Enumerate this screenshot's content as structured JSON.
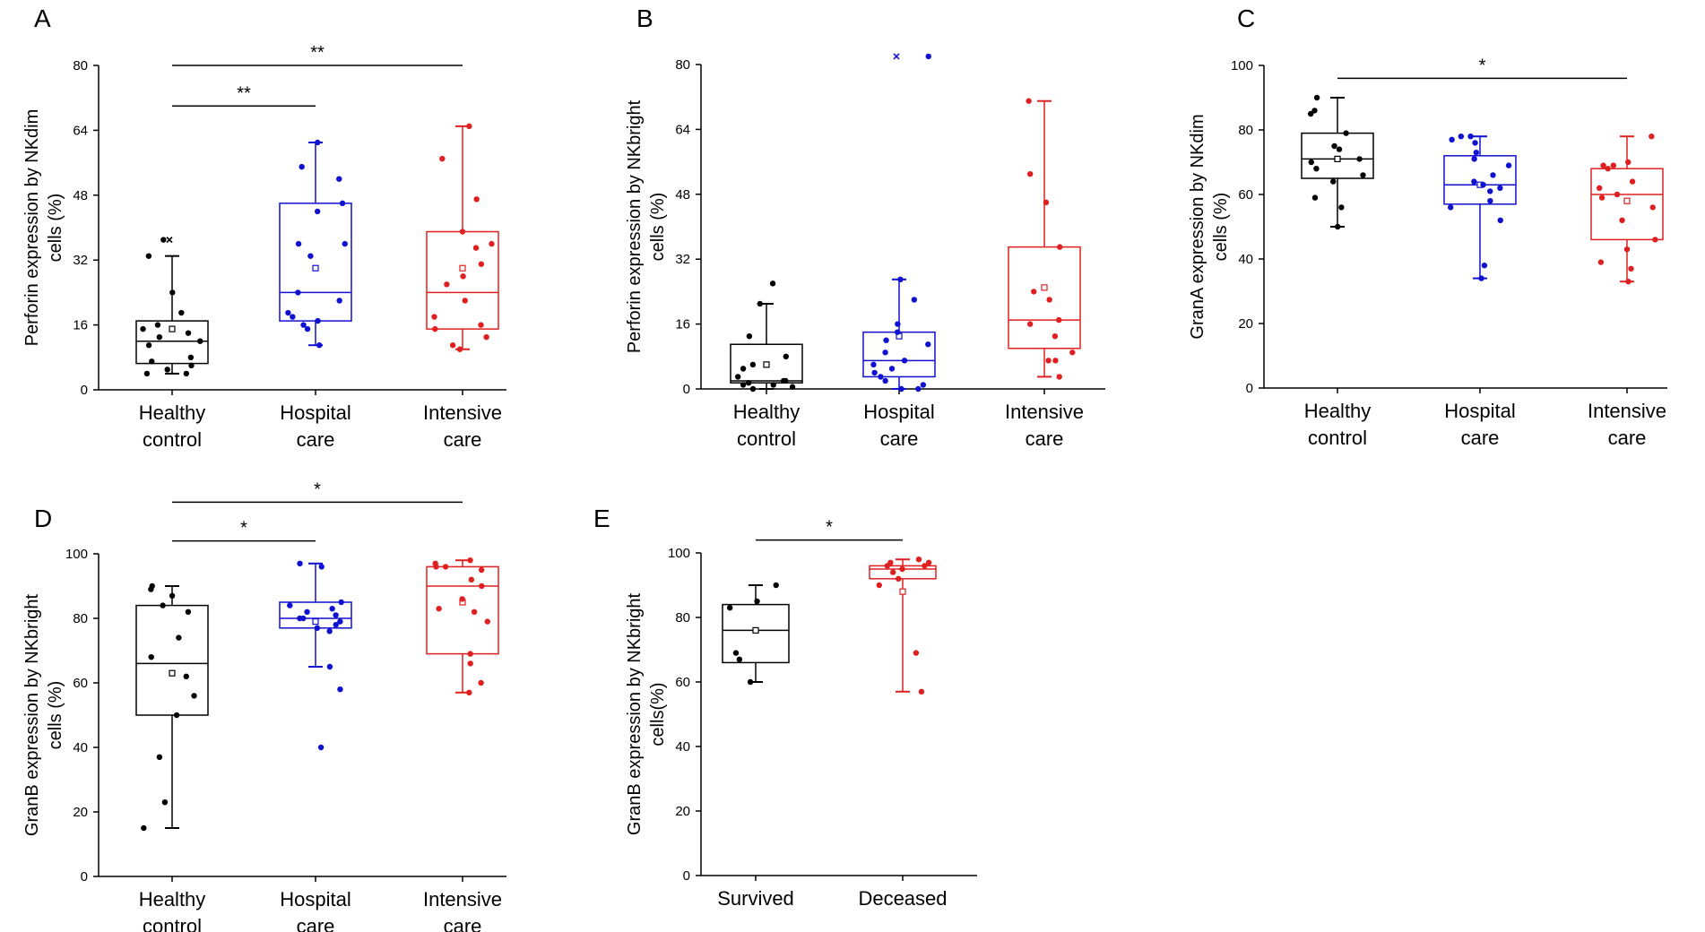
{
  "chart_data": [
    {
      "panel": "A",
      "type": "box",
      "ylabel": [
        "Perforin expression by NKdim",
        "cells (%)"
      ],
      "ylim": [
        0,
        80
      ],
      "yticks": [
        0,
        16,
        32,
        48,
        64,
        80
      ],
      "categories": [
        [
          "Healthy",
          "control"
        ],
        [
          "Hospital",
          "care"
        ],
        [
          "Intensive",
          "care"
        ]
      ],
      "colors": [
        "#000000",
        "#1010d0",
        "#e02020"
      ],
      "series": [
        {
          "name": "Healthy control",
          "q1": 6.5,
          "median": 12,
          "q3": 17,
          "whisker_low": 4,
          "whisker_high": 33,
          "mean": 15,
          "points": [
            4,
            4,
            5,
            6,
            7,
            8,
            11,
            12,
            13,
            14,
            15,
            16,
            19,
            24,
            33,
            37
          ],
          "outliers": [
            37
          ]
        },
        {
          "name": "Hospital care",
          "q1": 17,
          "median": 24,
          "q3": 46,
          "whisker_low": 11,
          "whisker_high": 61,
          "mean": 30,
          "points": [
            11,
            15,
            16,
            17,
            18,
            19,
            22,
            24,
            33,
            36,
            36,
            44,
            46,
            52,
            55,
            61
          ]
        },
        {
          "name": "Intensive care",
          "q1": 15,
          "median": 24,
          "q3": 39,
          "whisker_low": 10,
          "whisker_high": 65,
          "mean": 30,
          "points": [
            10,
            11,
            13,
            15,
            16,
            18,
            22,
            26,
            28,
            31,
            35,
            36,
            39,
            47,
            57,
            65
          ]
        }
      ],
      "significance": [
        {
          "from": 0,
          "to": 1,
          "label": "**",
          "y": 70
        },
        {
          "from": 0,
          "to": 2,
          "label": "**",
          "y": 80
        }
      ]
    },
    {
      "panel": "B",
      "type": "box",
      "ylabel": [
        "Perforin expression by NKbright",
        "cells (%)"
      ],
      "ylim": [
        0,
        80
      ],
      "yticks": [
        0,
        16,
        32,
        48,
        64,
        80
      ],
      "categories": [
        [
          "Healthy",
          "control"
        ],
        [
          "Hospital",
          "care"
        ],
        [
          "Intensive",
          "care"
        ]
      ],
      "colors": [
        "#000000",
        "#1010d0",
        "#e02020"
      ],
      "series": [
        {
          "name": "Healthy control",
          "q1": 1.5,
          "median": 2,
          "q3": 11,
          "whisker_low": 0,
          "whisker_high": 21,
          "mean": 6,
          "points": [
            0,
            0.5,
            1,
            1,
            1.5,
            2,
            2,
            3,
            5,
            6,
            8,
            13,
            21,
            26
          ]
        },
        {
          "name": "Hospital care",
          "q1": 3,
          "median": 7,
          "q3": 14,
          "whisker_low": 0,
          "whisker_high": 27,
          "mean": 13,
          "points": [
            0,
            0,
            1,
            2,
            3,
            4,
            5,
            6,
            7,
            9,
            11,
            12,
            14,
            16,
            22,
            27,
            82
          ],
          "outliers": [
            82
          ]
        },
        {
          "name": "Intensive care",
          "q1": 10,
          "median": 17,
          "q3": 35,
          "whisker_low": 3,
          "whisker_high": 71,
          "mean": 25,
          "points": [
            3,
            7,
            7,
            9,
            13,
            16,
            17,
            22,
            24,
            35,
            46,
            53,
            71
          ]
        }
      ],
      "significance": []
    },
    {
      "panel": "C",
      "type": "box",
      "ylabel": [
        "GranA expression by NKdim",
        "cells (%)"
      ],
      "ylim": [
        0,
        100
      ],
      "yticks": [
        0,
        20,
        40,
        60,
        80,
        100
      ],
      "categories": [
        [
          "Healthy",
          "control"
        ],
        [
          "Hospital",
          "care"
        ],
        [
          "Intensive",
          "care"
        ]
      ],
      "colors": [
        "#000000",
        "#1010d0",
        "#e02020"
      ],
      "series": [
        {
          "name": "Healthy control",
          "q1": 65,
          "median": 71,
          "q3": 79,
          "whisker_low": 50,
          "whisker_high": 90,
          "mean": 71,
          "points": [
            50,
            56,
            59,
            64,
            66,
            68,
            70,
            71,
            74,
            75,
            79,
            85,
            86,
            90
          ]
        },
        {
          "name": "Hospital care",
          "q1": 57,
          "median": 63,
          "q3": 72,
          "whisker_low": 34,
          "whisker_high": 78,
          "mean": 63,
          "points": [
            34,
            38,
            52,
            56,
            58,
            61,
            62,
            63,
            64,
            66,
            69,
            71,
            73,
            76,
            77,
            78,
            78
          ]
        },
        {
          "name": "Intensive care",
          "q1": 46,
          "median": 60,
          "q3": 68,
          "whisker_low": 33,
          "whisker_high": 78,
          "mean": 58,
          "points": [
            33,
            37,
            39,
            43,
            46,
            52,
            56,
            59,
            60,
            62,
            64,
            68,
            69,
            69,
            70,
            78
          ]
        }
      ],
      "significance": [
        {
          "from": 0,
          "to": 2,
          "label": "*",
          "y": 96
        }
      ]
    },
    {
      "panel": "D",
      "type": "box",
      "ylabel": [
        "GranB expression by NKbright",
        "cells (%)"
      ],
      "ylim": [
        0,
        100
      ],
      "yticks": [
        0,
        20,
        40,
        60,
        80,
        100
      ],
      "categories": [
        [
          "Healthy",
          "control"
        ],
        [
          "Hospital",
          "care"
        ],
        [
          "Intensive",
          "care"
        ]
      ],
      "colors": [
        "#000000",
        "#1010d0",
        "#e02020"
      ],
      "series": [
        {
          "name": "Healthy control",
          "q1": 50,
          "median": 66,
          "q3": 84,
          "whisker_low": 15,
          "whisker_high": 90,
          "mean": 63,
          "points": [
            15,
            23,
            37,
            50,
            56,
            62,
            68,
            74,
            82,
            84,
            87,
            89,
            90
          ]
        },
        {
          "name": "Hospital care",
          "q1": 77,
          "median": 80,
          "q3": 85,
          "whisker_low": 65,
          "whisker_high": 97,
          "mean": 79,
          "points": [
            40,
            58,
            65,
            76,
            77,
            78,
            79,
            80,
            80,
            81,
            82,
            83,
            84,
            85,
            96,
            97
          ]
        },
        {
          "name": "Intensive care",
          "q1": 69,
          "median": 90,
          "q3": 96,
          "whisker_low": 57,
          "whisker_high": 98,
          "mean": 85,
          "points": [
            57,
            60,
            66,
            69,
            79,
            82,
            83,
            86,
            90,
            92,
            95,
            96,
            96,
            97,
            98
          ]
        }
      ],
      "significance": [
        {
          "from": 0,
          "to": 1,
          "label": "*",
          "y": 104
        },
        {
          "from": 0,
          "to": 2,
          "label": "*",
          "y": 116
        }
      ]
    },
    {
      "panel": "E",
      "type": "box",
      "ylabel": [
        "GranB expression by NKbright",
        "cells(%)"
      ],
      "ylim": [
        0,
        100
      ],
      "yticks": [
        0,
        20,
        40,
        60,
        80,
        100
      ],
      "categories": [
        [
          "Survived"
        ],
        [
          "Deceased"
        ]
      ],
      "colors": [
        "#000000",
        "#e02020"
      ],
      "series": [
        {
          "name": "Survived",
          "q1": 66,
          "median": 76,
          "q3": 84,
          "whisker_low": 60,
          "whisker_high": 90,
          "mean": 76,
          "points": [
            60,
            67,
            69,
            83,
            85,
            90
          ]
        },
        {
          "name": "Deceased",
          "q1": 92,
          "median": 95,
          "q3": 96,
          "whisker_low": 57,
          "whisker_high": 98,
          "mean": 88,
          "points": [
            57,
            69,
            90,
            92,
            94,
            95,
            96,
            96,
            97,
            97,
            98
          ]
        }
      ],
      "significance": [
        {
          "from": 0,
          "to": 1,
          "label": "*",
          "y": 104
        }
      ]
    }
  ]
}
